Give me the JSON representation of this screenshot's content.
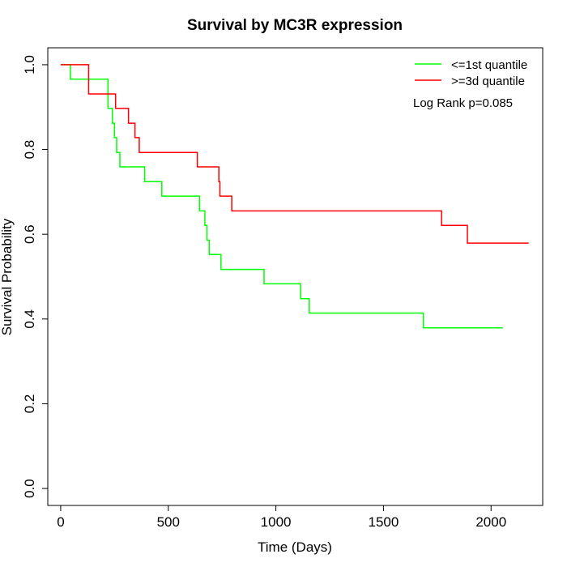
{
  "chart_data": {
    "type": "line",
    "title": "Survival by MC3R expression",
    "xlabel": "Time (Days)",
    "ylabel": "Survival Probability",
    "xlim": [
      -60,
      2240
    ],
    "ylim": [
      -0.04,
      1.04
    ],
    "xticks": [
      0,
      500,
      1000,
      1500,
      2000
    ],
    "yticks": [
      0.0,
      0.2,
      0.4,
      0.6,
      0.8,
      1.0
    ],
    "xtick_labels": [
      "0",
      "500",
      "1000",
      "1500",
      "2000"
    ],
    "ytick_labels": [
      "0.0",
      "0.2",
      "0.4",
      "0.6",
      "0.8",
      "1.0"
    ],
    "grid": false,
    "legend_position": "top-right",
    "annotation": "Log Rank p=0.085",
    "series": [
      {
        "name": "<=1st quantile",
        "color": "#00ff00",
        "step": true,
        "x": [
          0,
          45,
          195,
          220,
          240,
          250,
          260,
          275,
          390,
          470,
          645,
          670,
          680,
          690,
          700,
          745,
          945,
          1115,
          1155,
          1685,
          2055
        ],
        "y": [
          1.0,
          0.966,
          0.966,
          0.897,
          0.862,
          0.828,
          0.793,
          0.759,
          0.724,
          0.69,
          0.655,
          0.621,
          0.586,
          0.552,
          0.552,
          0.517,
          0.483,
          0.448,
          0.414,
          0.379,
          0.379
        ]
      },
      {
        "name": ">=3d quantile",
        "color": "#ff0000",
        "step": true,
        "x": [
          0,
          115,
          130,
          255,
          315,
          345,
          365,
          635,
          735,
          740,
          755,
          795,
          1770,
          1890,
          2175
        ],
        "y": [
          1.0,
          1.0,
          0.931,
          0.897,
          0.862,
          0.828,
          0.793,
          0.759,
          0.724,
          0.69,
          0.69,
          0.655,
          0.621,
          0.579,
          0.579
        ]
      }
    ]
  }
}
